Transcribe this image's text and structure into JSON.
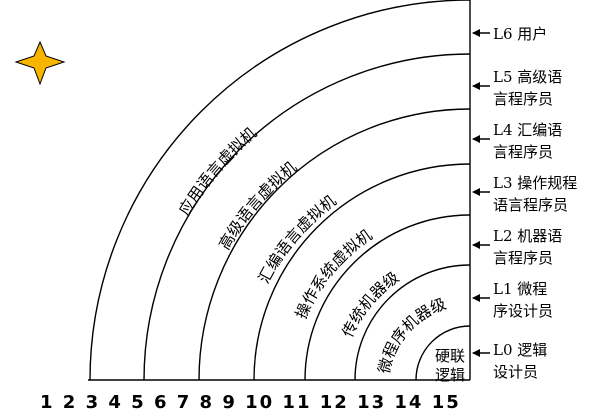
{
  "diagram": {
    "arc_labels": [
      "应用语言虚拟机",
      "高级语言虚拟机",
      "汇编语言虚拟机",
      "操作系统虚拟机",
      "传统机器级",
      "微程序机器级"
    ],
    "core_label": [
      "硬联",
      "逻辑"
    ],
    "levels": [
      {
        "line1": "L6 用户",
        "line2": ""
      },
      {
        "line1": "L5 高级语",
        "line2": "言程序员"
      },
      {
        "line1": "L4 汇编语",
        "line2": "言程序员"
      },
      {
        "line1": "L3 操作规程",
        "line2": "语言程序员"
      },
      {
        "line1": "L2 机器语",
        "line2": "言程序员"
      },
      {
        "line1": "L1 微程",
        "line2": "序设计员"
      },
      {
        "line1": "L0 逻辑",
        "line2": "设计员"
      }
    ],
    "star_color": "#f7b500",
    "star_icon": "star-icon"
  },
  "caption": "1 2 3 4 5 6 7 8 9 10 11 12 13 14 15"
}
